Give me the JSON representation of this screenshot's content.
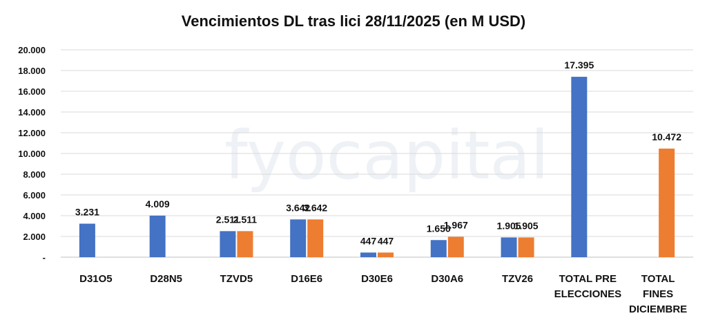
{
  "chart_data": {
    "type": "bar",
    "title": "Vencimientos DL tras lici 28/11/2025 (en M USD)",
    "watermark": "fyocapital",
    "categories": [
      [
        "D31O5"
      ],
      [
        "D28N5"
      ],
      [
        "TZVD5"
      ],
      [
        "D16E6"
      ],
      [
        "D30E6"
      ],
      [
        "D30A6"
      ],
      [
        "TZV26"
      ],
      [
        "TOTAL PRE",
        "ELECCIONES"
      ],
      [
        "TOTAL",
        "FINES",
        "DICIEMBRE"
      ]
    ],
    "series": [
      {
        "color": "#4472c4",
        "values": [
          3231,
          4009,
          2511,
          3642,
          447,
          1650,
          1905,
          17395,
          null
        ],
        "labels": [
          "3.231",
          "4.009",
          "2.511",
          "3.642",
          "447",
          "1.650",
          "1.905",
          "17.395",
          ""
        ]
      },
      {
        "color": "#ed7d31",
        "values": [
          null,
          null,
          2511,
          3642,
          447,
          1967,
          1905,
          null,
          10472
        ],
        "labels": [
          "",
          "",
          "2.511",
          "3.642",
          "447",
          "1.967",
          "1.905",
          "",
          "10.472"
        ]
      }
    ],
    "ylim": [
      0,
      20000
    ],
    "yticks": [
      0,
      2000,
      4000,
      6000,
      8000,
      10000,
      12000,
      14000,
      16000,
      18000,
      20000
    ],
    "ytick_labels": [
      "-",
      "2.000",
      "4.000",
      "6.000",
      "8.000",
      "10.000",
      "12.000",
      "14.000",
      "16.000",
      "18.000",
      "20.000"
    ],
    "grid": true,
    "gridline_color": "#d9d9d9",
    "legend": "none"
  }
}
